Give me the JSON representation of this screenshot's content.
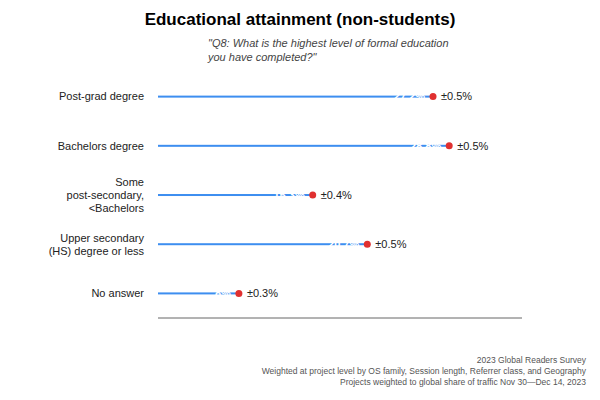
{
  "chart_data": {
    "type": "bar",
    "orientation": "horizontal",
    "title": "Educational attainment (non-students)",
    "subtitle": "\"Q8: What is the highest level of formal education\nyou have completed?\"",
    "categories": [
      "No answer",
      "Upper secondary\n(HS) degree or less",
      "Some\npost-secondary,\n<Bachelors",
      "Bachelors degree",
      "Post-grad degree"
    ],
    "values": [
      8.0,
      20.7,
      15.3,
      28.8,
      27.2
    ],
    "value_labels": [
      "8%",
      "20.7%",
      "15.3%",
      "28.8%",
      "27.2%"
    ],
    "margin_labels": [
      "±0.3%",
      "±0.5%",
      "±0.4%",
      "±0.5%",
      "±0.5%"
    ],
    "footnote": "2023 Global Readers Survey\nWeighted at project level by OS family, Session length, Referrer class, and Geography\nProjects weighted to global share of traffic Nov 30—Dec 14, 2023",
    "color": "#3d8ef0",
    "marker": "circle",
    "marker_color": "#e03030",
    "xlim": [
      0,
      36
    ],
    "data_labels": true,
    "tick_labels": "y",
    "grid": false
  }
}
